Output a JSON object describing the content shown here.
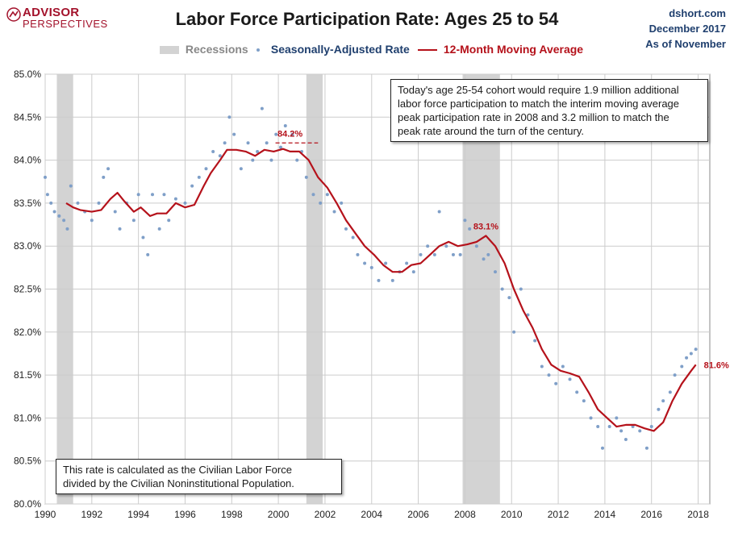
{
  "header": {
    "logo_line1": "ADVISOR",
    "logo_line2": "PERSPECTIVES",
    "title": "Labor Force Participation Rate: Ages 25 to 54",
    "source_lines": [
      "dshort.com",
      "December 2017",
      "As of November"
    ]
  },
  "legend": {
    "recessions": "Recessions",
    "rate": "Seasonally-Adjusted Rate",
    "moving_average": "12-Month Moving Average"
  },
  "notes": {
    "top": "Today's age 25-54  cohort would require 1.9 million additional\nlabor force participation to match the interim moving average\npeak participation rate in 2008  and 3.2 million to match the\npeak rate around the turn of the century.",
    "bottom": "This rate is calculated as the Civilian Labor Force\ndivided by the Civilian Noninstitutional Population."
  },
  "colors": {
    "moving_average": "#b5121b",
    "scatter": "#7f9fc8",
    "recession": "#d3d3d3",
    "annotation": "#b5121b",
    "legend_rate_text": "#1f3f6e",
    "legend_recession_text": "#888888"
  },
  "chart_data": {
    "type": "line",
    "title": "Labor Force Participation Rate: Ages 25 to 54",
    "xlim": [
      1990,
      2018.5
    ],
    "ylim": [
      80.0,
      85.0
    ],
    "x_ticks": [
      1990,
      1992,
      1994,
      1996,
      1998,
      2000,
      2002,
      2004,
      2006,
      2008,
      2010,
      2012,
      2014,
      2016,
      2018
    ],
    "x_tick_labels": [
      "1990",
      "1992",
      "1994",
      "1996",
      "1998",
      "2000",
      "2002",
      "2004",
      "2006",
      "2008",
      "2010",
      "2012",
      "2014",
      "2016",
      "2018"
    ],
    "y_ticks": [
      80.0,
      80.5,
      81.0,
      81.5,
      82.0,
      82.5,
      83.0,
      83.5,
      84.0,
      84.5,
      85.0
    ],
    "y_tick_labels": [
      "80.0%",
      "80.5%",
      "81.0%",
      "81.5%",
      "82.0%",
      "82.5%",
      "83.0%",
      "83.5%",
      "84.0%",
      "84.5%",
      "85.0%"
    ],
    "grid": true,
    "legend_position": "top",
    "recessions": [
      [
        1990.5,
        1991.2
      ],
      [
        2001.2,
        2001.9
      ],
      [
        2007.9,
        2009.5
      ]
    ],
    "series": [
      {
        "name": "12-Month Moving Average",
        "style": "line",
        "points": [
          [
            1990.9,
            83.5
          ],
          [
            1991.2,
            83.45
          ],
          [
            1991.5,
            83.42
          ],
          [
            1992.0,
            83.4
          ],
          [
            1992.4,
            83.42
          ],
          [
            1992.8,
            83.55
          ],
          [
            1993.1,
            83.62
          ],
          [
            1993.4,
            83.52
          ],
          [
            1993.8,
            83.4
          ],
          [
            1994.1,
            83.45
          ],
          [
            1994.5,
            83.35
          ],
          [
            1994.8,
            83.38
          ],
          [
            1995.2,
            83.38
          ],
          [
            1995.6,
            83.5
          ],
          [
            1996.0,
            83.45
          ],
          [
            1996.4,
            83.48
          ],
          [
            1996.8,
            83.7
          ],
          [
            1997.1,
            83.85
          ],
          [
            1997.5,
            84.0
          ],
          [
            1997.8,
            84.12
          ],
          [
            1998.2,
            84.12
          ],
          [
            1998.6,
            84.1
          ],
          [
            1999.0,
            84.05
          ],
          [
            1999.4,
            84.12
          ],
          [
            1999.8,
            84.1
          ],
          [
            2000.2,
            84.13
          ],
          [
            2000.5,
            84.1
          ],
          [
            2000.9,
            84.1
          ],
          [
            2001.3,
            84.0
          ],
          [
            2001.7,
            83.8
          ],
          [
            2002.1,
            83.68
          ],
          [
            2002.5,
            83.5
          ],
          [
            2002.9,
            83.3
          ],
          [
            2003.3,
            83.15
          ],
          [
            2003.7,
            83.0
          ],
          [
            2004.1,
            82.9
          ],
          [
            2004.5,
            82.78
          ],
          [
            2004.9,
            82.7
          ],
          [
            2005.3,
            82.7
          ],
          [
            2005.7,
            82.78
          ],
          [
            2006.1,
            82.8
          ],
          [
            2006.5,
            82.9
          ],
          [
            2006.9,
            83.0
          ],
          [
            2007.3,
            83.05
          ],
          [
            2007.7,
            83.0
          ],
          [
            2008.1,
            83.02
          ],
          [
            2008.5,
            83.05
          ],
          [
            2008.9,
            83.12
          ],
          [
            2009.3,
            83.0
          ],
          [
            2009.7,
            82.8
          ],
          [
            2010.1,
            82.5
          ],
          [
            2010.5,
            82.25
          ],
          [
            2010.9,
            82.05
          ],
          [
            2011.3,
            81.8
          ],
          [
            2011.7,
            81.62
          ],
          [
            2012.1,
            81.55
          ],
          [
            2012.5,
            81.52
          ],
          [
            2012.9,
            81.48
          ],
          [
            2013.3,
            81.3
          ],
          [
            2013.7,
            81.1
          ],
          [
            2014.1,
            81.0
          ],
          [
            2014.5,
            80.9
          ],
          [
            2014.9,
            80.92
          ],
          [
            2015.3,
            80.92
          ],
          [
            2015.7,
            80.88
          ],
          [
            2016.1,
            80.85
          ],
          [
            2016.5,
            80.95
          ],
          [
            2016.9,
            81.2
          ],
          [
            2017.3,
            81.4
          ],
          [
            2017.7,
            81.55
          ],
          [
            2017.9,
            81.62
          ]
        ]
      },
      {
        "name": "Seasonally-Adjusted Rate",
        "style": "scatter",
        "points": [
          [
            1990.0,
            83.8
          ],
          [
            1990.1,
            83.6
          ],
          [
            1990.25,
            83.5
          ],
          [
            1990.4,
            83.4
          ],
          [
            1990.6,
            83.35
          ],
          [
            1990.8,
            83.3
          ],
          [
            1990.95,
            83.2
          ],
          [
            1991.1,
            83.7
          ],
          [
            1991.4,
            83.5
          ],
          [
            1991.7,
            83.4
          ],
          [
            1992.0,
            83.3
          ],
          [
            1992.3,
            83.5
          ],
          [
            1992.5,
            83.8
          ],
          [
            1992.7,
            83.9
          ],
          [
            1993.0,
            83.4
          ],
          [
            1993.2,
            83.2
          ],
          [
            1993.5,
            83.5
          ],
          [
            1993.8,
            83.3
          ],
          [
            1994.0,
            83.6
          ],
          [
            1994.2,
            83.1
          ],
          [
            1994.4,
            82.9
          ],
          [
            1994.6,
            83.6
          ],
          [
            1994.9,
            83.2
          ],
          [
            1995.1,
            83.6
          ],
          [
            1995.3,
            83.3
          ],
          [
            1995.6,
            83.55
          ],
          [
            1996.0,
            83.5
          ],
          [
            1996.3,
            83.7
          ],
          [
            1996.6,
            83.8
          ],
          [
            1996.9,
            83.9
          ],
          [
            1997.2,
            84.1
          ],
          [
            1997.5,
            84.05
          ],
          [
            1997.7,
            84.2
          ],
          [
            1997.9,
            84.5
          ],
          [
            1998.1,
            84.3
          ],
          [
            1998.4,
            83.9
          ],
          [
            1998.7,
            84.2
          ],
          [
            1998.9,
            84.0
          ],
          [
            1999.1,
            84.1
          ],
          [
            1999.3,
            84.6
          ],
          [
            1999.5,
            84.2
          ],
          [
            1999.7,
            84.0
          ],
          [
            1999.9,
            84.3
          ],
          [
            2000.1,
            84.15
          ],
          [
            2000.3,
            84.4
          ],
          [
            2000.6,
            84.3
          ],
          [
            2000.8,
            84.0
          ],
          [
            2001.0,
            84.1
          ],
          [
            2001.2,
            83.8
          ],
          [
            2001.5,
            83.6
          ],
          [
            2001.8,
            83.5
          ],
          [
            2002.1,
            83.6
          ],
          [
            2002.4,
            83.4
          ],
          [
            2002.7,
            83.5
          ],
          [
            2002.9,
            83.2
          ],
          [
            2003.2,
            83.1
          ],
          [
            2003.4,
            82.9
          ],
          [
            2003.7,
            82.8
          ],
          [
            2004.0,
            82.75
          ],
          [
            2004.3,
            82.6
          ],
          [
            2004.6,
            82.8
          ],
          [
            2004.9,
            82.6
          ],
          [
            2005.2,
            82.7
          ],
          [
            2005.5,
            82.8
          ],
          [
            2005.8,
            82.7
          ],
          [
            2006.1,
            82.9
          ],
          [
            2006.4,
            83.0
          ],
          [
            2006.7,
            82.9
          ],
          [
            2006.9,
            83.4
          ],
          [
            2007.2,
            83.0
          ],
          [
            2007.5,
            82.9
          ],
          [
            2007.8,
            82.9
          ],
          [
            2008.0,
            83.3
          ],
          [
            2008.2,
            83.2
          ],
          [
            2008.5,
            83.0
          ],
          [
            2008.8,
            82.85
          ],
          [
            2009.0,
            82.9
          ],
          [
            2009.3,
            82.7
          ],
          [
            2009.6,
            82.5
          ],
          [
            2009.9,
            82.4
          ],
          [
            2010.1,
            82.0
          ],
          [
            2010.4,
            82.5
          ],
          [
            2010.7,
            82.2
          ],
          [
            2011.0,
            81.9
          ],
          [
            2011.3,
            81.6
          ],
          [
            2011.6,
            81.5
          ],
          [
            2011.9,
            81.4
          ],
          [
            2012.2,
            81.6
          ],
          [
            2012.5,
            81.45
          ],
          [
            2012.8,
            81.3
          ],
          [
            2013.1,
            81.2
          ],
          [
            2013.4,
            81.0
          ],
          [
            2013.7,
            80.9
          ],
          [
            2013.9,
            80.65
          ],
          [
            2014.2,
            80.9
          ],
          [
            2014.5,
            81.0
          ],
          [
            2014.7,
            80.85
          ],
          [
            2014.9,
            80.75
          ],
          [
            2015.2,
            80.9
          ],
          [
            2015.5,
            80.85
          ],
          [
            2015.8,
            80.65
          ],
          [
            2016.0,
            80.9
          ],
          [
            2016.3,
            81.1
          ],
          [
            2016.5,
            81.2
          ],
          [
            2016.8,
            81.3
          ],
          [
            2017.0,
            81.5
          ],
          [
            2017.3,
            81.6
          ],
          [
            2017.5,
            81.7
          ],
          [
            2017.7,
            81.75
          ],
          [
            2017.9,
            81.8
          ]
        ]
      }
    ],
    "annotations": [
      {
        "label": "84.2%",
        "x": 2000.5,
        "y": 84.2,
        "reference_line_to": 2001.7
      },
      {
        "label": "83.1%",
        "x": 2008.9,
        "y": 83.12
      },
      {
        "label": "81.6%",
        "x": 2017.9,
        "y": 81.62
      }
    ]
  }
}
